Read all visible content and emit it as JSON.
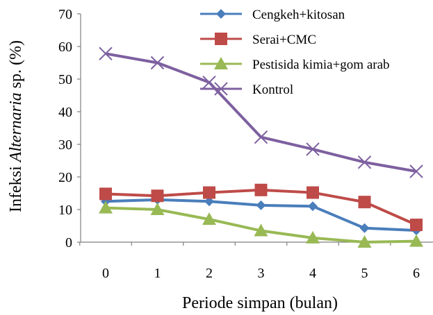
{
  "chart_data": {
    "type": "line",
    "xlabel": "Periode simpan (bulan)",
    "ylabel_prefix": "Infeksi ",
    "ylabel_italic": "Alternaria",
    "ylabel_suffix": " sp. (%)",
    "x": [
      0,
      1,
      2,
      3,
      4,
      5,
      6
    ],
    "ylim": [
      0,
      70
    ],
    "yticks": [
      0,
      10,
      20,
      30,
      40,
      50,
      60,
      70
    ],
    "grid": false,
    "legend_position": "top-right",
    "series": [
      {
        "name": "Cengkeh+kitosan",
        "color": "#4a7ebb",
        "marker": "diamond",
        "values": [
          12.5,
          13,
          12.5,
          11.3,
          11,
          4.3,
          3.6
        ]
      },
      {
        "name": "Serai+CMC",
        "color": "#be4b48",
        "marker": "square",
        "values": [
          14.8,
          14.2,
          15.2,
          16,
          15.2,
          12.3,
          5.3
        ]
      },
      {
        "name": "Pestisida kimia+gom arab",
        "color": "#98b954",
        "marker": "triangle",
        "values": [
          10.5,
          10,
          7,
          3.5,
          1.3,
          0,
          0.3
        ]
      },
      {
        "name": "Kontrol",
        "color": "#7d60a0",
        "marker": "x",
        "values": [
          57.8,
          55,
          49,
          32.2,
          28.5,
          24.5,
          21.7
        ]
      }
    ]
  }
}
